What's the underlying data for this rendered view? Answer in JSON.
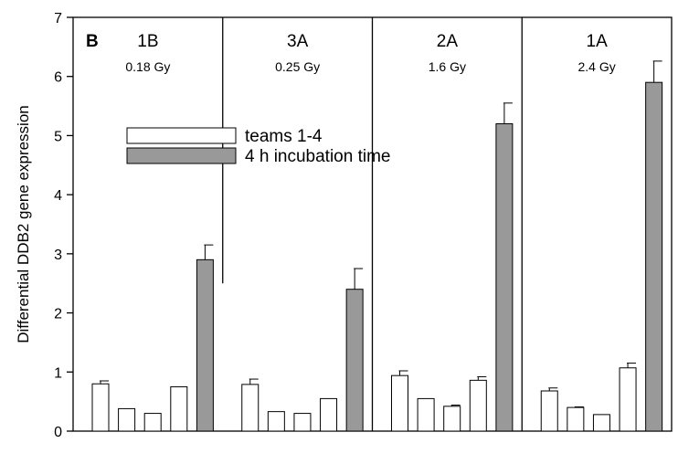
{
  "chart_data": {
    "type": "bar",
    "panel_label": "B",
    "ylabel": "Differential DDB2 gene expression",
    "xlabel": "",
    "ylim": [
      0,
      7
    ],
    "yticks": [
      "0",
      "1",
      "2",
      "3",
      "4",
      "5",
      "6",
      "7"
    ],
    "grid": false,
    "legend_position": "upper-left",
    "series": [
      {
        "name": "teams 1-4",
        "color": "#ffffff"
      },
      {
        "name": "4 h incubation time",
        "color": "#999999"
      }
    ],
    "groups": [
      {
        "sample": "1B",
        "dose": "0.18 Gy",
        "bars": [
          {
            "series": 0,
            "value": 0.8,
            "error": 0.05
          },
          {
            "series": 0,
            "value": 0.38,
            "error": 0
          },
          {
            "series": 0,
            "value": 0.3,
            "error": 0
          },
          {
            "series": 0,
            "value": 0.75,
            "error": 0
          },
          {
            "series": 1,
            "value": 2.9,
            "error": 0.25
          }
        ]
      },
      {
        "sample": "3A",
        "dose": "0.25 Gy",
        "bars": [
          {
            "series": 0,
            "value": 0.79,
            "error": 0.09
          },
          {
            "series": 0,
            "value": 0.33,
            "error": 0
          },
          {
            "series": 0,
            "value": 0.3,
            "error": 0
          },
          {
            "series": 0,
            "value": 0.55,
            "error": 0
          },
          {
            "series": 1,
            "value": 2.4,
            "error": 0.35
          }
        ]
      },
      {
        "sample": "2A",
        "dose": "1.6 Gy",
        "bars": [
          {
            "series": 0,
            "value": 0.94,
            "error": 0.08
          },
          {
            "series": 0,
            "value": 0.55,
            "error": 0
          },
          {
            "series": 0,
            "value": 0.42,
            "error": 0.02
          },
          {
            "series": 0,
            "value": 0.86,
            "error": 0.06
          },
          {
            "series": 1,
            "value": 5.2,
            "error": 0.35
          }
        ]
      },
      {
        "sample": "1A",
        "dose": "2.4 Gy",
        "bars": [
          {
            "series": 0,
            "value": 0.68,
            "error": 0.05
          },
          {
            "series": 0,
            "value": 0.4,
            "error": 0.01
          },
          {
            "series": 0,
            "value": 0.28,
            "error": 0
          },
          {
            "series": 0,
            "value": 1.07,
            "error": 0.08
          },
          {
            "series": 1,
            "value": 5.9,
            "error": 0.36
          }
        ]
      }
    ]
  }
}
